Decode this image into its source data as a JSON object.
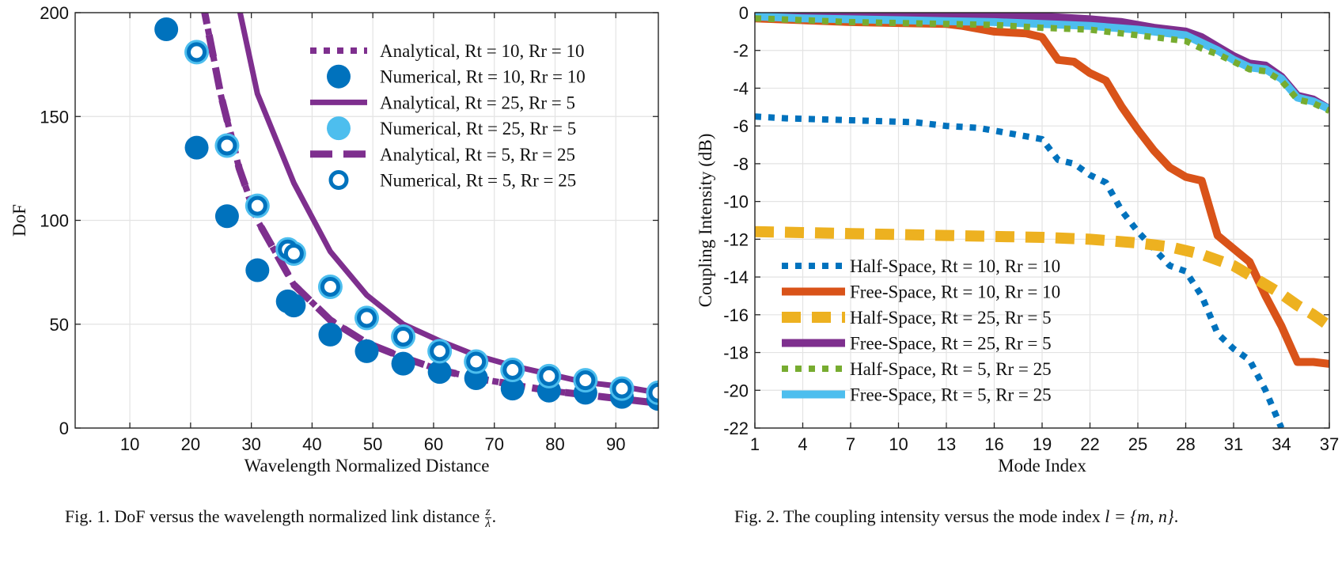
{
  "colors": {
    "purple": "#7E2F8E",
    "blue": "#0072BD",
    "lightblue": "#4DBEEE",
    "orange": "#D95319",
    "yellow": "#EDB120",
    "green": "#77AC30",
    "grid": "#e3e3e3",
    "axis": "#262626"
  },
  "chart_data": [
    {
      "type": "line",
      "xlabel": "Wavelength Normalized Distance",
      "ylabel": "DoF",
      "xlim": [
        1,
        97
      ],
      "ylim": [
        0,
        200
      ],
      "xticks": [
        "10",
        "20",
        "30",
        "40",
        "50",
        "60",
        "70",
        "80",
        "90"
      ],
      "yticks": [
        "0",
        "50",
        "100",
        "150",
        "200"
      ],
      "grid": true,
      "legend_position": "top-right",
      "series": [
        {
          "name": "Analytical, Rt = 10, Rr = 10",
          "style": "dotted-line",
          "color": "#7E2F8E",
          "x": [
            22,
            25,
            28,
            31,
            37,
            43,
            49,
            55,
            61,
            67,
            73,
            79,
            85,
            91,
            97
          ],
          "y": [
            205,
            160,
            125,
            100,
            69,
            52,
            41,
            34,
            28,
            24,
            21,
            18,
            16,
            14,
            12
          ]
        },
        {
          "name": "Numerical, Rt = 10, Rr = 10",
          "style": "filled-marker",
          "color": "#0072BD",
          "x": [
            16,
            21,
            26,
            31,
            36,
            37,
            43,
            49,
            55,
            61,
            67,
            73,
            79,
            85,
            91,
            97
          ],
          "y": [
            192,
            135,
            102,
            76,
            61,
            59,
            45,
            37,
            31,
            27,
            24,
            19,
            18,
            17,
            15,
            14
          ]
        },
        {
          "name": "Analytical, Rt = 25, Rr = 5",
          "style": "solid-line",
          "color": "#7E2F8E",
          "x": [
            28,
            31,
            37,
            43,
            49,
            55,
            61,
            67,
            73,
            79,
            85,
            91,
            97
          ],
          "y": [
            202,
            161,
            118,
            85,
            64,
            50,
            42,
            35,
            30,
            26,
            22,
            20,
            17
          ]
        },
        {
          "name": "Numerical, Rt = 25, Rr = 5",
          "style": "filled-marker",
          "color": "#4DBEEE",
          "x": [
            21,
            26,
            31,
            36,
            37,
            43,
            49,
            55,
            61,
            67,
            73,
            79,
            85,
            91,
            97
          ],
          "y": [
            181,
            136,
            107,
            86,
            84,
            68,
            53,
            44,
            37,
            32,
            28,
            25,
            23,
            19,
            17
          ]
        },
        {
          "name": "Analytical, Rt = 5, Rr = 25",
          "style": "dashed-line",
          "color": "#7E2F8E",
          "x": [
            22,
            25,
            28,
            31,
            37,
            43,
            49,
            55,
            61,
            67,
            73,
            79,
            85,
            91,
            97
          ],
          "y": [
            205,
            160,
            125,
            100,
            69,
            52,
            41,
            34,
            28,
            24,
            21,
            18,
            16,
            14,
            12
          ]
        },
        {
          "name": "Numerical, Rt = 5, Rr = 25",
          "style": "ring-marker",
          "color": "#0072BD",
          "x": [
            21,
            26,
            31,
            36,
            37,
            43,
            49,
            55,
            61,
            67,
            73,
            79,
            85,
            91,
            97
          ],
          "y": [
            181,
            136,
            107,
            86,
            84,
            68,
            53,
            44,
            37,
            32,
            28,
            25,
            23,
            19,
            17
          ]
        }
      ]
    },
    {
      "type": "line",
      "xlabel": "Mode Index",
      "ylabel": "Coupling Intensity (dB)",
      "xlim": [
        1,
        37
      ],
      "ylim": [
        -22,
        0
      ],
      "xticks": [
        "1",
        "4",
        "7",
        "10",
        "13",
        "16",
        "19",
        "22",
        "25",
        "28",
        "31",
        "34",
        "37"
      ],
      "yticks": [
        "0",
        "-2",
        "-4",
        "-6",
        "-8",
        "-10",
        "-12",
        "-14",
        "-16",
        "-18",
        "-20",
        "-22"
      ],
      "grid": true,
      "legend_position": "bottom-left",
      "series": [
        {
          "name": "Half-Space, Rt = 10, Rr = 10",
          "style": "dotted-line",
          "color": "#0072BD",
          "x": [
            1,
            3,
            5,
            7,
            9,
            11,
            13,
            15,
            17,
            19,
            20,
            21,
            22,
            23,
            24,
            25,
            26,
            27,
            28,
            29,
            30,
            31,
            32,
            33,
            34
          ],
          "y": [
            -5.5,
            -5.6,
            -5.65,
            -5.7,
            -5.75,
            -5.8,
            -6.0,
            -6.1,
            -6.4,
            -6.7,
            -7.8,
            -8.0,
            -8.6,
            -9.0,
            -10.5,
            -11.6,
            -12.5,
            -13.4,
            -13.7,
            -15.0,
            -17.0,
            -17.8,
            -18.4,
            -20.0,
            -22.0
          ]
        },
        {
          "name": "Free-Space, Rt = 10, Rr = 10",
          "style": "solid-line",
          "color": "#D95319",
          "x": [
            1,
            4,
            7,
            10,
            13,
            14,
            16,
            18,
            19,
            20,
            21,
            22,
            23,
            24,
            25,
            26,
            27,
            28,
            29,
            30,
            31,
            32,
            33,
            34,
            35,
            36,
            37
          ],
          "y": [
            -0.3,
            -0.4,
            -0.5,
            -0.55,
            -0.6,
            -0.7,
            -1.0,
            -1.1,
            -1.3,
            -2.5,
            -2.6,
            -3.2,
            -3.6,
            -5.0,
            -6.2,
            -7.3,
            -8.2,
            -8.7,
            -8.9,
            -11.8,
            -12.5,
            -13.2,
            -15.0,
            -16.6,
            -18.5,
            -18.5,
            -18.6
          ]
        },
        {
          "name": "Half-Space, Rt = 25, Rr = 5",
          "style": "dashed-line",
          "color": "#EDB120",
          "x": [
            1,
            4,
            7,
            10,
            13,
            16,
            19,
            22,
            25,
            27,
            29,
            31,
            32,
            33,
            34,
            35,
            36,
            37
          ],
          "y": [
            -11.6,
            -11.65,
            -11.7,
            -11.75,
            -11.8,
            -11.85,
            -11.9,
            -12.0,
            -12.2,
            -12.4,
            -12.8,
            -13.4,
            -13.9,
            -14.4,
            -14.9,
            -15.5,
            -16.0,
            -16.6
          ]
        },
        {
          "name": "Free-Space, Rt = 25, Rr = 5",
          "style": "solid-line",
          "color": "#7E2F8E",
          "x": [
            1,
            4,
            7,
            10,
            13,
            16,
            19,
            22,
            24,
            26,
            28,
            29,
            30,
            31,
            32,
            33,
            34,
            35,
            36,
            37
          ],
          "y": [
            0.15,
            0.05,
            0.0,
            -0.05,
            -0.1,
            -0.15,
            -0.2,
            -0.35,
            -0.5,
            -0.8,
            -1.0,
            -1.3,
            -1.8,
            -2.3,
            -2.7,
            -2.8,
            -3.4,
            -4.4,
            -4.6,
            -5.1
          ]
        },
        {
          "name": "Half-Space, Rt = 5, Rr = 25",
          "style": "dotted-line",
          "color": "#77AC30",
          "x": [
            1,
            4,
            7,
            10,
            13,
            16,
            19,
            22,
            25,
            28,
            29,
            30,
            31,
            32,
            33,
            34,
            35,
            36,
            37
          ],
          "y": [
            -0.3,
            -0.4,
            -0.5,
            -0.55,
            -0.6,
            -0.65,
            -0.8,
            -0.9,
            -1.2,
            -1.5,
            -1.9,
            -2.2,
            -2.6,
            -3.0,
            -3.1,
            -3.6,
            -4.6,
            -4.8,
            -5.2
          ]
        },
        {
          "name": "Free-Space, Rt = 5, Rr = 25",
          "style": "solid-line",
          "color": "#4DBEEE",
          "x": [
            1,
            4,
            7,
            10,
            13,
            16,
            19,
            22,
            25,
            28,
            29,
            30,
            31,
            32,
            33,
            34,
            35,
            36,
            37
          ],
          "y": [
            -0.2,
            -0.3,
            -0.35,
            -0.4,
            -0.45,
            -0.5,
            -0.6,
            -0.7,
            -0.9,
            -1.2,
            -1.6,
            -2.0,
            -2.5,
            -2.9,
            -3.0,
            -3.5,
            -4.5,
            -4.7,
            -5.1
          ]
        }
      ]
    }
  ],
  "captions": {
    "fig1": {
      "text": "Fig. 1.  DoF versus the wavelength normalized link distance",
      "frac_num": "z",
      "frac_den": "λ",
      "end": "."
    },
    "fig2": {
      "text": "Fig. 2.  The coupling intensity versus the mode index",
      "math": "l = {m, n}",
      "end": "."
    }
  }
}
